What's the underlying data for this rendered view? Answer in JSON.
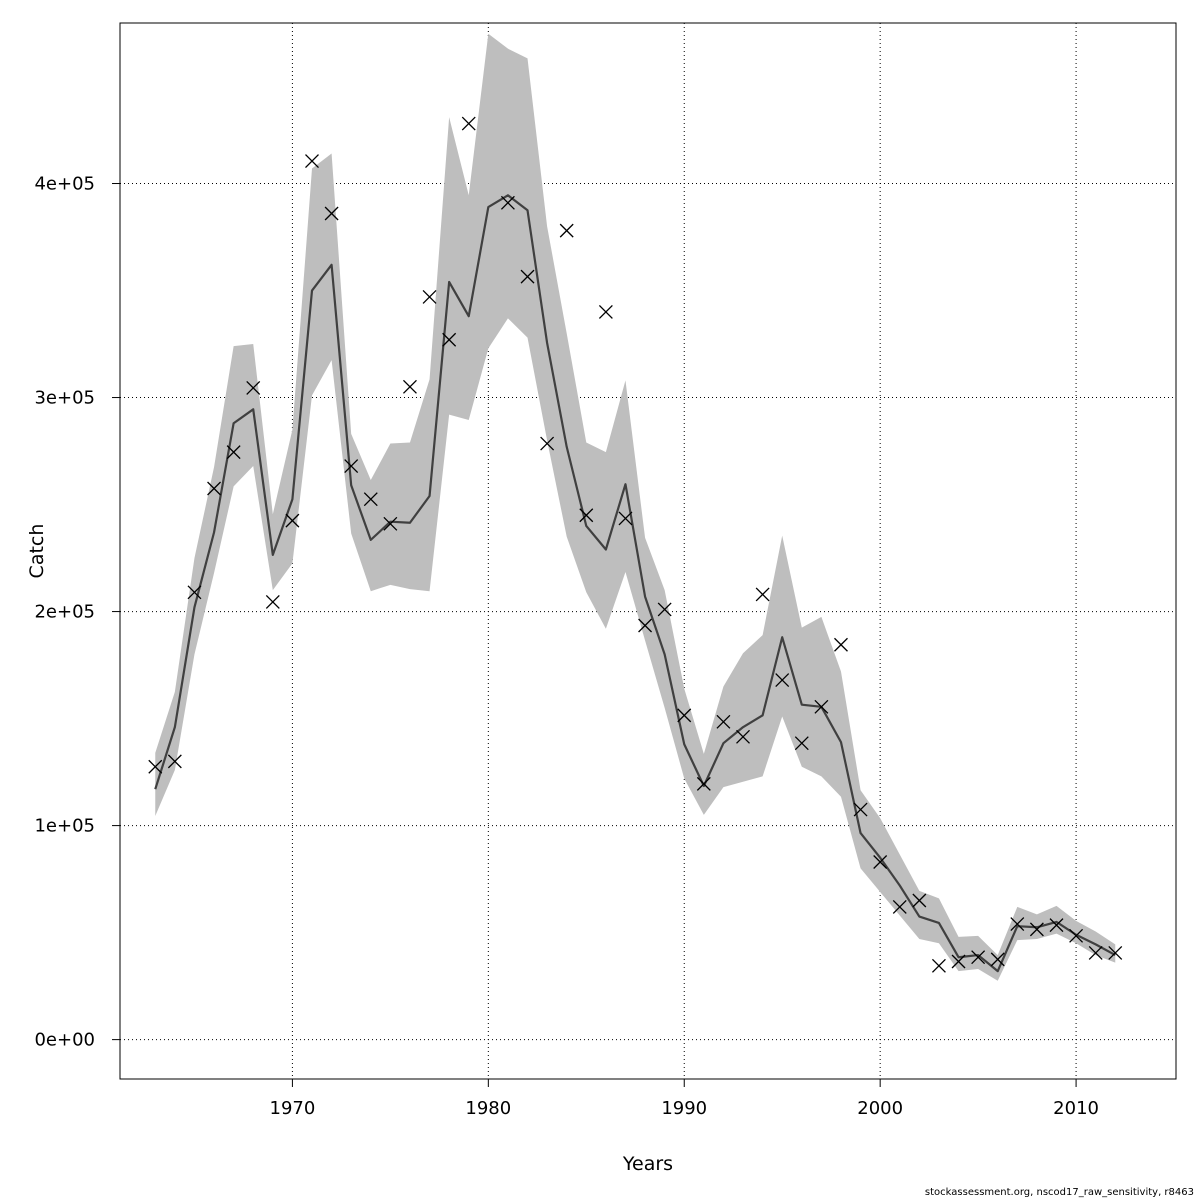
{
  "chart_data": {
    "type": "line",
    "xlabel": "Years",
    "ylabel": "Catch",
    "xlim": [
      1961.2,
      2015.1
    ],
    "ylim": [
      -18400,
      475000
    ],
    "x_ticks": [
      1970,
      1980,
      1990,
      2000,
      2010
    ],
    "y_ticks": [
      0,
      100000,
      200000,
      300000,
      400000
    ],
    "y_tick_labels": [
      "0e+00",
      "1e+05",
      "2e+05",
      "3e+05",
      "4e+05"
    ],
    "grid": true,
    "grid_style": "dotted",
    "band_color": "#bebebe",
    "line_color": "#404040",
    "years": [
      1963,
      1964,
      1965,
      1966,
      1967,
      1968,
      1969,
      1970,
      1971,
      1972,
      1973,
      1974,
      1975,
      1976,
      1977,
      1978,
      1979,
      1980,
      1981,
      1982,
      1983,
      1984,
      1985,
      1986,
      1987,
      1988,
      1989,
      1990,
      1991,
      1992,
      1993,
      1994,
      1995,
      1996,
      1997,
      1998,
      1999,
      2000,
      2001,
      2002,
      2003,
      2004,
      2005,
      2006,
      2007,
      2008,
      2009,
      2010,
      2011,
      2012
    ],
    "observed": [
      127500,
      130000,
      209000,
      257500,
      274500,
      304500,
      204500,
      242500,
      410500,
      386000,
      268000,
      252500,
      241000,
      305000,
      347000,
      327000,
      428000,
      null,
      391000,
      356500,
      278500,
      378000,
      245000,
      340000,
      243500,
      193500,
      201000,
      151500,
      119500,
      148500,
      141500,
      208000,
      168000,
      138500,
      155500,
      184500,
      107500,
      83000,
      62000,
      65000,
      34500,
      36500,
      38500,
      37500,
      54000,
      51500,
      53500,
      48500,
      40500,
      40500
    ],
    "series": [
      {
        "values": [
          117000,
          146000,
          202000,
          237000,
          288000,
          294500,
          226500,
          252500,
          350000,
          362000,
          259000,
          233500,
          242000,
          241500,
          254000,
          354000,
          338000,
          389000,
          394500,
          387500,
          325500,
          277000,
          240000,
          229000,
          259500,
          207000,
          180000,
          138000,
          118500,
          138500,
          146000,
          151500,
          188000,
          156500,
          155500,
          139000,
          96500,
          85000,
          72000,
          57500,
          54500,
          38500,
          39500,
          32000,
          53000,
          52500,
          55000,
          49000,
          44500,
          39500
        ]
      }
    ],
    "band": {
      "lower": [
        104500,
        126000,
        180000,
        218000,
        258500,
        268000,
        210000,
        222500,
        301000,
        317500,
        236500,
        209500,
        212500,
        210500,
        209500,
        292000,
        289500,
        323000,
        337000,
        328000,
        280000,
        235000,
        209000,
        192000,
        218500,
        186500,
        155000,
        122000,
        105000,
        118000,
        120500,
        123000,
        151000,
        127500,
        123000,
        113500,
        80000,
        69000,
        58000,
        47000,
        45000,
        32000,
        33000,
        27500,
        46500,
        47000,
        49500,
        45000,
        39500,
        36000
      ],
      "upper": [
        134000,
        162500,
        225000,
        267500,
        324000,
        325000,
        245500,
        285000,
        407000,
        414000,
        283000,
        261500,
        278500,
        279000,
        308500,
        431000,
        394500,
        470000,
        463000,
        458500,
        380000,
        330000,
        279000,
        274500,
        308000,
        234500,
        210000,
        164000,
        133500,
        165000,
        180500,
        189000,
        235500,
        192500,
        197500,
        172000,
        116500,
        103500,
        86500,
        69500,
        66000,
        48000,
        48500,
        39500,
        62000,
        58500,
        62500,
        55500,
        50500,
        44500
      ]
    }
  },
  "footer": "stockassessment.org, nscod17_raw_sensitivity, r8463"
}
